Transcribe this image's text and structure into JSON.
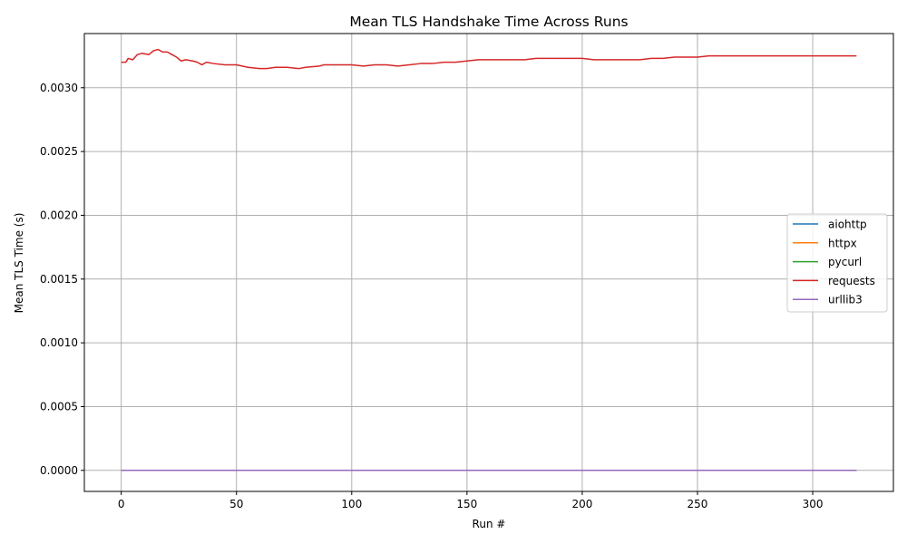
{
  "chart_data": {
    "type": "line",
    "title": "Mean TLS Handshake Time Across Runs",
    "xlabel": "Run #",
    "ylabel": "Mean TLS Time (s)",
    "xlim": [
      -16,
      335
    ],
    "ylim": [
      -0.000165,
      0.003425
    ],
    "xticks": [
      0,
      50,
      100,
      150,
      200,
      250,
      300
    ],
    "yticks": [
      0.0,
      0.0005,
      0.001,
      0.0015,
      0.002,
      0.0025,
      0.003
    ],
    "ytick_labels": [
      "0.0000",
      "0.0005",
      "0.0010",
      "0.0015",
      "0.0020",
      "0.0025",
      "0.0030"
    ],
    "grid": true,
    "legend_position": "center-right",
    "series": [
      {
        "name": "aiohttp",
        "color": "#1f77b4",
        "points": [
          [
            0,
            0.0
          ],
          [
            319,
            0.0
          ]
        ]
      },
      {
        "name": "httpx",
        "color": "#ff7f0e",
        "points": [
          [
            0,
            0.0
          ],
          [
            319,
            0.0
          ]
        ]
      },
      {
        "name": "pycurl",
        "color": "#2ca02c",
        "points": [
          [
            0,
            0.0
          ],
          [
            319,
            0.0
          ]
        ]
      },
      {
        "name": "requests",
        "color": "#d62728",
        "points": [
          [
            0,
            0.0032
          ],
          [
            2,
            0.0032
          ],
          [
            3,
            0.00323
          ],
          [
            5,
            0.00322
          ],
          [
            7,
            0.00326
          ],
          [
            9,
            0.00327
          ],
          [
            12,
            0.00326
          ],
          [
            14,
            0.00329
          ],
          [
            16,
            0.0033
          ],
          [
            18,
            0.00328
          ],
          [
            20,
            0.00328
          ],
          [
            22,
            0.00326
          ],
          [
            24,
            0.00324
          ],
          [
            26,
            0.00321
          ],
          [
            28,
            0.00322
          ],
          [
            31,
            0.00321
          ],
          [
            33,
            0.0032
          ],
          [
            35,
            0.00318
          ],
          [
            37,
            0.0032
          ],
          [
            40,
            0.00319
          ],
          [
            45,
            0.00318
          ],
          [
            50,
            0.00318
          ],
          [
            55,
            0.00316
          ],
          [
            60,
            0.00315
          ],
          [
            63,
            0.00315
          ],
          [
            67,
            0.00316
          ],
          [
            72,
            0.00316
          ],
          [
            77,
            0.00315
          ],
          [
            80,
            0.00316
          ],
          [
            86,
            0.00317
          ],
          [
            88,
            0.00318
          ],
          [
            95,
            0.00318
          ],
          [
            100,
            0.00318
          ],
          [
            105,
            0.00317
          ],
          [
            110,
            0.00318
          ],
          [
            115,
            0.00318
          ],
          [
            120,
            0.00317
          ],
          [
            125,
            0.00318
          ],
          [
            130,
            0.00319
          ],
          [
            135,
            0.00319
          ],
          [
            140,
            0.0032
          ],
          [
            145,
            0.0032
          ],
          [
            150,
            0.00321
          ],
          [
            155,
            0.00322
          ],
          [
            160,
            0.00322
          ],
          [
            165,
            0.00322
          ],
          [
            170,
            0.00322
          ],
          [
            175,
            0.00322
          ],
          [
            180,
            0.00323
          ],
          [
            190,
            0.00323
          ],
          [
            200,
            0.00323
          ],
          [
            205,
            0.00322
          ],
          [
            210,
            0.00322
          ],
          [
            215,
            0.00322
          ],
          [
            220,
            0.00322
          ],
          [
            225,
            0.00322
          ],
          [
            230,
            0.00323
          ],
          [
            235,
            0.00323
          ],
          [
            240,
            0.00324
          ],
          [
            245,
            0.00324
          ],
          [
            250,
            0.00324
          ],
          [
            255,
            0.00325
          ],
          [
            260,
            0.00325
          ],
          [
            270,
            0.00325
          ],
          [
            280,
            0.00325
          ],
          [
            290,
            0.00325
          ],
          [
            300,
            0.00325
          ],
          [
            310,
            0.00325
          ],
          [
            315,
            0.00325
          ],
          [
            319,
            0.00325
          ]
        ]
      },
      {
        "name": "urllib3",
        "color": "#9467bd",
        "points": [
          [
            0,
            0.0
          ],
          [
            319,
            0.0
          ]
        ]
      }
    ]
  }
}
